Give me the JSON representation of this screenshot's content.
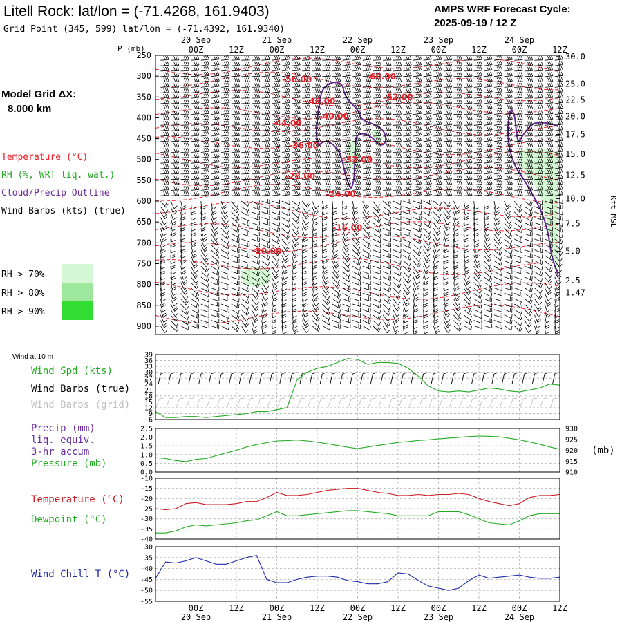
{
  "header": {
    "title": "Litell Rock:  lat/lon = (-71.4268, 161.9403)",
    "subtitle": "Grid Point (345, 599) lat/lon = (-71.4392, 161.9340)",
    "cycle_line1": "AMPS WRF Forecast Cycle:",
    "cycle_line2": "2025-09-19 / 12  Z"
  },
  "left_legend": {
    "grid_line1": "Model Grid ΔX:",
    "grid_line2": "8.000 km",
    "temperature": "Temperature (°C)",
    "rh": "RH (%, WRT liq. wat.)",
    "cloud": "Cloud/Precip Outline",
    "wind": "Wind Barbs (kts) (true)",
    "rh70": "RH > 70%",
    "rh80": "RH > 80%",
    "rh90": "RH > 90%"
  },
  "colors": {
    "temperature": "#e8202a",
    "rh": "#22aa22",
    "cloud": "#6a2a9a",
    "windchill": "#1f2aa8",
    "rh70": "#d4f7d4",
    "rh80": "#9ee89e",
    "rh90": "#33dd33",
    "grid": "#b0b0b0"
  },
  "time_axis": {
    "dates_top": [
      {
        "label": "20 Sep",
        "t": 12
      },
      {
        "label": "21 Sep",
        "t": 36
      },
      {
        "label": "22 Sep",
        "t": 60
      },
      {
        "label": "23 Sep",
        "t": 84
      },
      {
        "label": "24 Sep",
        "t": 108
      }
    ],
    "hours": [
      {
        "label": "00Z",
        "t": 12
      },
      {
        "label": "12Z",
        "t": 24
      },
      {
        "label": "00Z",
        "t": 36
      },
      {
        "label": "12Z",
        "t": 48
      },
      {
        "label": "00Z",
        "t": 60
      },
      {
        "label": "12Z",
        "t": 72
      },
      {
        "label": "00Z",
        "t": 84
      },
      {
        "label": "12Z",
        "t": 96
      },
      {
        "label": "00Z",
        "t": 108
      },
      {
        "label": "12Z",
        "t": 120
      }
    ],
    "dates_bottom": [
      {
        "label": "20 Sep",
        "t": 12
      },
      {
        "label": "21 Sep",
        "t": 36
      },
      {
        "label": "22 Sep",
        "t": 60
      },
      {
        "label": "23 Sep",
        "t": 84
      },
      {
        "label": "24 Sep",
        "t": 108
      }
    ]
  },
  "chart_data": [
    {
      "type": "heatmap",
      "name": "time-height cross section",
      "xlim": [
        0,
        120
      ],
      "ylim": [
        250,
        920
      ],
      "y_axis_title": "P (mb)",
      "y_ticks": [
        250,
        300,
        350,
        400,
        450,
        500,
        550,
        600,
        650,
        700,
        750,
        800,
        850,
        900
      ],
      "right_axis_title": "Kft MSL",
      "right_ticks": [
        {
          "label": "30.0",
          "p": 253
        },
        {
          "label": "25.0",
          "p": 319
        },
        {
          "label": "22.5",
          "p": 357
        },
        {
          "label": "20.0",
          "p": 397
        },
        {
          "label": "17.5",
          "p": 440
        },
        {
          "label": "15.0",
          "p": 487
        },
        {
          "label": "12.5",
          "p": 538
        },
        {
          "label": "10.0",
          "p": 594
        },
        {
          "label": "7.5",
          "p": 654
        },
        {
          "label": "5.0",
          "p": 720
        },
        {
          "label": "2.5",
          "p": 791
        },
        {
          "label": "1.47",
          "p": 820
        }
      ],
      "temperature_labels": [
        {
          "label": "-56.00",
          "t": 42,
          "p": 315
        },
        {
          "label": "-60.00",
          "t": 67,
          "p": 308
        },
        {
          "label": "-52.00",
          "t": 72,
          "p": 357
        },
        {
          "label": "-48.00",
          "t": 49,
          "p": 367
        },
        {
          "label": "-40.00",
          "t": 53,
          "p": 403
        },
        {
          "label": "-44.00",
          "t": 39,
          "p": 420
        },
        {
          "label": "-36.00",
          "t": 44,
          "p": 473
        },
        {
          "label": "-32.00",
          "t": 60,
          "p": 507
        },
        {
          "label": "-28.00",
          "t": 43,
          "p": 547
        },
        {
          "label": "-24.00",
          "t": 55,
          "p": 590
        },
        {
          "label": "-16.00",
          "t": 57,
          "p": 670
        },
        {
          "label": "-20.00",
          "t": 33,
          "p": 727
        }
      ]
    },
    {
      "type": "line",
      "name": "wind at 10 m",
      "panel_label": "Wind at 10 m",
      "series": [
        {
          "name": "Wind Spd (kts)",
          "x": [
            0,
            3,
            6,
            9,
            12,
            15,
            18,
            21,
            24,
            27,
            30,
            33,
            36,
            39,
            42,
            45,
            48,
            51,
            54,
            57,
            60,
            63,
            66,
            69,
            72,
            75,
            78,
            81,
            84,
            87,
            90,
            93,
            96,
            99,
            102,
            105,
            108,
            111,
            114,
            117,
            120
          ],
          "y": [
            10,
            7,
            7,
            7.5,
            7.5,
            7,
            7.5,
            8,
            8.5,
            9,
            10,
            10,
            11,
            12,
            26,
            30,
            32,
            33,
            35,
            37,
            36.5,
            34,
            35,
            35,
            34.5,
            32,
            28,
            23,
            20.5,
            20,
            20.5,
            20,
            21,
            22,
            21.5,
            20.5,
            20,
            21,
            22,
            24,
            23.5
          ]
        }
      ],
      "legend": [
        "Wind Spd (kts)",
        "Wind Barbs (true)",
        "Wind Barbs (grid)"
      ],
      "y_ticks": [
        6,
        9,
        12,
        15,
        18,
        21,
        24,
        27,
        30,
        33,
        36,
        39
      ],
      "ylim": [
        6,
        39
      ]
    },
    {
      "type": "line",
      "name": "precip and pressure",
      "series": [
        {
          "name": "Pressure (mb)",
          "x": [
            0,
            3,
            6,
            9,
            12,
            15,
            18,
            21,
            24,
            27,
            30,
            33,
            36,
            39,
            42,
            45,
            48,
            51,
            54,
            57,
            60,
            63,
            66,
            69,
            72,
            75,
            78,
            81,
            84,
            87,
            90,
            93,
            96,
            99,
            102,
            105,
            108,
            111,
            114,
            117,
            120
          ],
          "y": [
            916.6,
            916.2,
            915.3,
            914.8,
            915.8,
            916.2,
            917.5,
            918.8,
            920.0,
            921.5,
            922.6,
            923.5,
            924.3,
            924.4,
            924.7,
            924.3,
            923.7,
            923.0,
            922.2,
            921.4,
            920.8,
            921.5,
            922.2,
            922.9,
            923.6,
            924.0,
            924.5,
            924.8,
            925.2,
            925.6,
            925.9,
            926.3,
            926.5,
            926.4,
            926.2,
            925.5,
            924.8,
            923.8,
            922.8,
            921.5,
            920.5
          ]
        }
      ],
      "legend": [
        "Precip (mm)",
        "liq. equiv.",
        "3-hr accum",
        "Pressure (mb)"
      ],
      "left_ticks": [
        0.0,
        0.5,
        1.0,
        1.5,
        2.0,
        2.5
      ],
      "right_ticks": [
        910,
        915,
        920,
        925,
        930
      ],
      "right_unit": "(mb)",
      "ylim": [
        910,
        930
      ]
    },
    {
      "type": "line",
      "name": "temperature and dewpoint",
      "series": [
        {
          "name": "Temperature (°C)",
          "x": [
            0,
            3,
            6,
            9,
            12,
            15,
            18,
            21,
            24,
            27,
            30,
            33,
            36,
            39,
            42,
            45,
            48,
            51,
            54,
            57,
            60,
            63,
            66,
            69,
            72,
            75,
            78,
            81,
            84,
            87,
            90,
            93,
            96,
            99,
            102,
            105,
            108,
            111,
            114,
            117,
            120
          ],
          "y": [
            -25,
            -25.5,
            -25,
            -22.5,
            -22,
            -23,
            -23,
            -23,
            -22.5,
            -21.5,
            -21.5,
            -19.5,
            -17,
            -18.5,
            -18.5,
            -18,
            -17,
            -16,
            -15.5,
            -15,
            -15,
            -16,
            -17,
            -17.5,
            -18.5,
            -18.5,
            -18,
            -18.5,
            -18,
            -18,
            -17.5,
            -18,
            -20,
            -21.5,
            -22.5,
            -23.5,
            -22.5,
            -19.5,
            -18.5,
            -18.5,
            -18
          ]
        },
        {
          "name": "Dewpoint (°C)",
          "x": [
            0,
            3,
            6,
            9,
            12,
            15,
            18,
            21,
            24,
            27,
            30,
            33,
            36,
            39,
            42,
            45,
            48,
            51,
            54,
            57,
            60,
            63,
            66,
            69,
            72,
            75,
            78,
            81,
            84,
            87,
            90,
            93,
            96,
            99,
            102,
            105,
            108,
            111,
            114,
            117,
            120
          ],
          "y": [
            -37,
            -37,
            -36,
            -34,
            -33,
            -33.5,
            -33,
            -32.5,
            -32,
            -31,
            -30.5,
            -28.5,
            -26.5,
            -28.5,
            -28.5,
            -28,
            -27.5,
            -27,
            -26.5,
            -26,
            -26,
            -26.5,
            -27,
            -27.5,
            -28.5,
            -28.5,
            -28.5,
            -28.5,
            -26.5,
            -26.5,
            -26.5,
            -28,
            -30,
            -32,
            -32.5,
            -33,
            -31,
            -28.5,
            -27.5,
            -27.5,
            -27.5
          ]
        }
      ],
      "left_ticks": [
        -40,
        -35,
        -30,
        -25,
        -20,
        -15,
        -10
      ],
      "ylim": [
        -40,
        -10
      ]
    },
    {
      "type": "line",
      "name": "wind chill",
      "series": [
        {
          "name": "Wind Chill T (°C)",
          "x": [
            0,
            3,
            6,
            9,
            12,
            15,
            18,
            21,
            24,
            27,
            30,
            33,
            36,
            39,
            42,
            45,
            48,
            51,
            54,
            57,
            60,
            63,
            66,
            69,
            72,
            75,
            78,
            81,
            84,
            87,
            90,
            93,
            96,
            99,
            102,
            105,
            108,
            111,
            114,
            117,
            120
          ],
          "y": [
            -44.5,
            -37,
            -37.5,
            -36.5,
            -35,
            -36.5,
            -38,
            -38,
            -36.5,
            -35,
            -34,
            -45,
            -46.5,
            -46.5,
            -45,
            -44,
            -43.5,
            -43.5,
            -44,
            -45.5,
            -46,
            -47,
            -47,
            -46,
            -42,
            -42.5,
            -45.5,
            -48,
            -49,
            -50,
            -49,
            -45.5,
            -43,
            -44.5,
            -44,
            -43.5,
            -43,
            -44,
            -44.5,
            -44.5,
            -44
          ]
        }
      ],
      "left_ticks": [
        -55,
        -50,
        -45,
        -40,
        -35,
        -30
      ],
      "ylim": [
        -55,
        -30
      ]
    }
  ]
}
